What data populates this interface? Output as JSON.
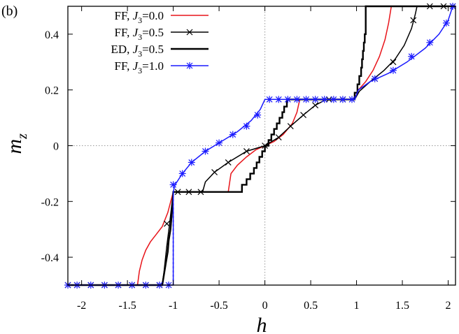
{
  "panel_label": "(b)",
  "chart_data": {
    "type": "line",
    "xlabel": "h",
    "ylabel_main": "m",
    "ylabel_sub": "z",
    "xlim": [
      -2.15,
      2.08
    ],
    "ylim": [
      -0.5,
      0.5
    ],
    "x_ticks": [
      -2,
      -1.5,
      -1,
      -0.5,
      0,
      0.5,
      1,
      1.5,
      2
    ],
    "x_tick_labels": [
      "-2",
      "-1.5",
      "-1",
      "-0.5",
      "0",
      "0.5",
      "1",
      "1.5",
      "2"
    ],
    "y_ticks": [
      -0.4,
      -0.2,
      0,
      0.2,
      0.4
    ],
    "y_tick_labels": [
      "-0.4",
      "-0.2",
      "0",
      "0.2",
      "0.4"
    ],
    "reference_lines": {
      "x": 0,
      "y": 0
    },
    "legend_position": "top-left",
    "series": [
      {
        "legend_prefix": "FF, ",
        "legend_j": "J",
        "legend_sub": "3",
        "legend_val": "=0.0",
        "color": "#e8141a",
        "marker": "none",
        "points": [
          [
            -2.15,
            -0.5
          ],
          [
            -1.39,
            -0.5
          ],
          [
            -1.37,
            -0.45
          ],
          [
            -1.34,
            -0.41
          ],
          [
            -1.3,
            -0.375
          ],
          [
            -1.25,
            -0.345
          ],
          [
            -1.19,
            -0.32
          ],
          [
            -1.12,
            -0.29
          ],
          [
            -1.06,
            -0.24
          ],
          [
            -1.0,
            -0.166
          ],
          [
            -0.4,
            -0.166
          ],
          [
            -0.37,
            -0.1
          ],
          [
            -0.3,
            -0.07
          ],
          [
            -0.2,
            -0.04
          ],
          [
            -0.1,
            -0.015
          ],
          [
            0.0,
            0.0
          ],
          [
            0.1,
            0.015
          ],
          [
            0.2,
            0.04
          ],
          [
            0.3,
            0.08
          ],
          [
            0.35,
            0.12
          ],
          [
            0.38,
            0.166
          ],
          [
            0.98,
            0.166
          ],
          [
            1.02,
            0.2
          ],
          [
            1.1,
            0.23
          ],
          [
            1.18,
            0.27
          ],
          [
            1.25,
            0.32
          ],
          [
            1.31,
            0.38
          ],
          [
            1.35,
            0.44
          ],
          [
            1.38,
            0.5
          ],
          [
            2.08,
            0.5
          ]
        ]
      },
      {
        "legend_prefix": "FF, ",
        "legend_j": "J",
        "legend_sub": "3",
        "legend_val": "=0.5",
        "color": "#000000",
        "marker": "x",
        "points": [
          [
            -2.15,
            -0.5
          ],
          [
            -1.12,
            -0.5
          ],
          [
            -1.1,
            -0.45
          ],
          [
            -1.07,
            -0.36
          ],
          [
            -1.04,
            -0.28
          ],
          [
            -1.0,
            -0.166
          ],
          [
            -0.68,
            -0.166
          ],
          [
            -0.65,
            -0.13
          ],
          [
            -0.55,
            -0.095
          ],
          [
            -0.4,
            -0.06
          ],
          [
            -0.2,
            -0.02
          ],
          [
            0.0,
            0.0
          ],
          [
            0.15,
            0.03
          ],
          [
            0.28,
            0.07
          ],
          [
            0.42,
            0.11
          ],
          [
            0.55,
            0.145
          ],
          [
            0.67,
            0.166
          ],
          [
            0.98,
            0.166
          ],
          [
            1.03,
            0.195
          ],
          [
            1.15,
            0.23
          ],
          [
            1.3,
            0.27
          ],
          [
            1.42,
            0.31
          ],
          [
            1.52,
            0.36
          ],
          [
            1.6,
            0.42
          ],
          [
            1.64,
            0.47
          ],
          [
            1.66,
            0.5
          ],
          [
            2.08,
            0.5
          ]
        ],
        "markers": [
          [
            -2.15,
            -0.5
          ],
          [
            -2.05,
            -0.5
          ],
          [
            -1.9,
            -0.5
          ],
          [
            -1.75,
            -0.5
          ],
          [
            -1.6,
            -0.5
          ],
          [
            -1.45,
            -0.5
          ],
          [
            -1.3,
            -0.5
          ],
          [
            -1.15,
            -0.5
          ],
          [
            -1.07,
            -0.28
          ],
          [
            -0.95,
            -0.166
          ],
          [
            -0.83,
            -0.166
          ],
          [
            -0.7,
            -0.166
          ],
          [
            -0.55,
            -0.095
          ],
          [
            -0.4,
            -0.06
          ],
          [
            -0.2,
            -0.02
          ],
          [
            0.0,
            0.0
          ],
          [
            0.15,
            0.03
          ],
          [
            0.28,
            0.07
          ],
          [
            0.42,
            0.11
          ],
          [
            0.55,
            0.145
          ],
          [
            0.7,
            0.166
          ],
          [
            0.85,
            0.166
          ],
          [
            1.2,
            0.24
          ],
          [
            1.4,
            0.3
          ],
          [
            1.62,
            0.45
          ],
          [
            1.8,
            0.5
          ],
          [
            1.95,
            0.5
          ],
          [
            2.05,
            0.5
          ]
        ]
      },
      {
        "legend_prefix": "ED, ",
        "legend_j": "J",
        "legend_sub": "3",
        "legend_val": "=0.5",
        "color": "#000000",
        "marker": "none",
        "thick": true,
        "points": [
          [
            -2.15,
            -0.5
          ],
          [
            -1.12,
            -0.5
          ],
          [
            -1.1,
            -0.46
          ],
          [
            -1.08,
            -0.42
          ],
          [
            -1.06,
            -0.38
          ],
          [
            -1.05,
            -0.34
          ],
          [
            -1.03,
            -0.3
          ],
          [
            -1.01,
            -0.22
          ],
          [
            -1.0,
            -0.166
          ],
          [
            -0.25,
            -0.166
          ],
          [
            -0.25,
            -0.14
          ],
          [
            -0.2,
            -0.14
          ],
          [
            -0.2,
            -0.12
          ],
          [
            -0.16,
            -0.12
          ],
          [
            -0.16,
            -0.1
          ],
          [
            -0.12,
            -0.1
          ],
          [
            -0.12,
            -0.08
          ],
          [
            -0.09,
            -0.08
          ],
          [
            -0.09,
            -0.06
          ],
          [
            -0.06,
            -0.06
          ],
          [
            -0.06,
            -0.04
          ],
          [
            -0.03,
            -0.04
          ],
          [
            -0.03,
            -0.02
          ],
          [
            0.0,
            -0.02
          ],
          [
            0.0,
            0.0
          ],
          [
            0.04,
            0.0
          ],
          [
            0.04,
            0.02
          ],
          [
            0.07,
            0.02
          ],
          [
            0.07,
            0.04
          ],
          [
            0.1,
            0.04
          ],
          [
            0.1,
            0.06
          ],
          [
            0.13,
            0.06
          ],
          [
            0.13,
            0.08
          ],
          [
            0.16,
            0.08
          ],
          [
            0.16,
            0.1
          ],
          [
            0.19,
            0.1
          ],
          [
            0.19,
            0.12
          ],
          [
            0.21,
            0.12
          ],
          [
            0.21,
            0.14
          ],
          [
            0.24,
            0.14
          ],
          [
            0.24,
            0.166
          ],
          [
            0.98,
            0.166
          ],
          [
            0.98,
            0.19
          ],
          [
            1.01,
            0.19
          ],
          [
            1.01,
            0.22
          ],
          [
            1.03,
            0.22
          ],
          [
            1.03,
            0.25
          ],
          [
            1.05,
            0.25
          ],
          [
            1.05,
            0.28
          ],
          [
            1.06,
            0.28
          ],
          [
            1.06,
            0.31
          ],
          [
            1.07,
            0.31
          ],
          [
            1.07,
            0.34
          ],
          [
            1.08,
            0.34
          ],
          [
            1.08,
            0.37
          ],
          [
            1.09,
            0.37
          ],
          [
            1.09,
            0.4
          ],
          [
            1.1,
            0.4
          ],
          [
            1.1,
            0.5
          ],
          [
            2.08,
            0.5
          ]
        ]
      },
      {
        "legend_prefix": "FF, ",
        "legend_j": "J",
        "legend_sub": "3",
        "legend_val": "=1.0",
        "color": "#1a1aff",
        "marker": "star",
        "points": [
          [
            -2.15,
            -0.5
          ],
          [
            -1.0,
            -0.5
          ],
          [
            -1.0,
            -0.166
          ],
          [
            -0.98,
            -0.14
          ],
          [
            -0.9,
            -0.1
          ],
          [
            -0.8,
            -0.06
          ],
          [
            -0.65,
            -0.02
          ],
          [
            -0.5,
            0.01
          ],
          [
            -0.3,
            0.05
          ],
          [
            -0.15,
            0.09
          ],
          [
            -0.05,
            0.13
          ],
          [
            0.0,
            0.166
          ],
          [
            0.98,
            0.166
          ],
          [
            1.02,
            0.2
          ],
          [
            1.15,
            0.23
          ],
          [
            1.35,
            0.26
          ],
          [
            1.55,
            0.3
          ],
          [
            1.75,
            0.35
          ],
          [
            1.9,
            0.4
          ],
          [
            2.0,
            0.45
          ],
          [
            2.05,
            0.5
          ],
          [
            2.08,
            0.5
          ]
        ],
        "markers": [
          [
            -2.15,
            -0.5
          ],
          [
            -2.05,
            -0.5
          ],
          [
            -1.9,
            -0.5
          ],
          [
            -1.75,
            -0.5
          ],
          [
            -1.6,
            -0.5
          ],
          [
            -1.45,
            -0.5
          ],
          [
            -1.3,
            -0.5
          ],
          [
            -1.15,
            -0.5
          ],
          [
            -1.05,
            -0.5
          ],
          [
            -1.0,
            -0.14
          ],
          [
            -0.9,
            -0.1
          ],
          [
            -0.8,
            -0.06
          ],
          [
            -0.65,
            -0.02
          ],
          [
            -0.5,
            0.01
          ],
          [
            -0.35,
            0.04
          ],
          [
            -0.2,
            0.07
          ],
          [
            -0.08,
            0.11
          ],
          [
            0.05,
            0.166
          ],
          [
            0.15,
            0.166
          ],
          [
            0.25,
            0.166
          ],
          [
            0.35,
            0.166
          ],
          [
            0.45,
            0.166
          ],
          [
            0.55,
            0.166
          ],
          [
            0.65,
            0.166
          ],
          [
            0.75,
            0.166
          ],
          [
            0.85,
            0.166
          ],
          [
            0.95,
            0.166
          ],
          [
            1.2,
            0.24
          ],
          [
            1.4,
            0.27
          ],
          [
            1.6,
            0.32
          ],
          [
            1.8,
            0.37
          ],
          [
            1.98,
            0.44
          ],
          [
            2.05,
            0.5
          ]
        ]
      }
    ],
    "dashed_guide": {
      "color": "#1a1aff",
      "x": -1.0,
      "y_from": -0.5,
      "y_to": -0.166
    }
  }
}
